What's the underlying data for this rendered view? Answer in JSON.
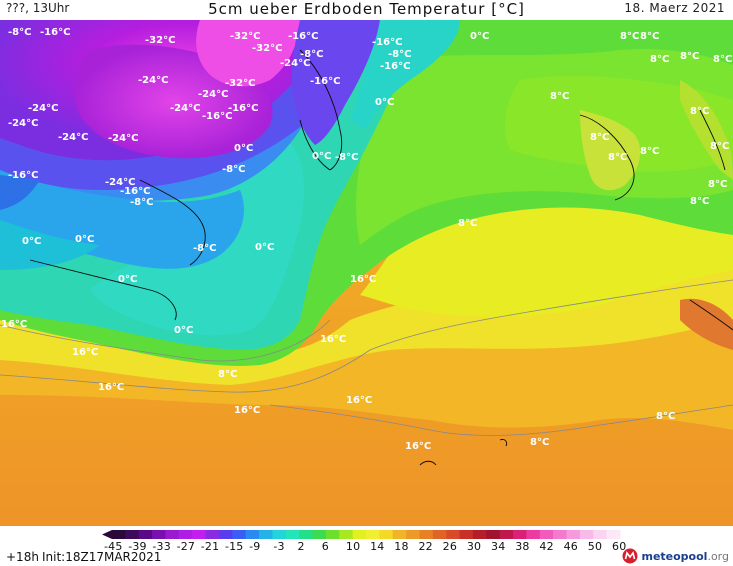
{
  "header": {
    "left": "???, 13Uhr",
    "title": "5cm ueber Erdboden Temperatur [°C]",
    "date": "18. Maerz 2021"
  },
  "map": {
    "contour_labels": [
      {
        "text": "-8°C"
      },
      {
        "text": "-16°C"
      },
      {
        "text": "-32°C"
      },
      {
        "text": "-32°C"
      },
      {
        "text": "-32°C"
      },
      {
        "text": "-16°C"
      },
      {
        "text": "-8°C"
      },
      {
        "text": "-16°C"
      },
      {
        "text": "-24°C"
      },
      {
        "text": "-8°C"
      },
      {
        "text": "-16°C"
      },
      {
        "text": "0°C"
      },
      {
        "text": "-24°C"
      },
      {
        "text": "-32°C"
      },
      {
        "text": "-24°C"
      },
      {
        "text": "-16°C"
      },
      {
        "text": "-24°C"
      },
      {
        "text": "-24°C"
      },
      {
        "text": "-24°C"
      },
      {
        "text": "-16°C"
      },
      {
        "text": "-24°C"
      },
      {
        "text": "-16°C"
      },
      {
        "text": "-24°C"
      },
      {
        "text": "0°C"
      },
      {
        "text": "0°C"
      },
      {
        "text": "-8°C"
      },
      {
        "text": "-16°C"
      },
      {
        "text": "-24°C"
      },
      {
        "text": "-16°C"
      },
      {
        "text": "-8°C"
      },
      {
        "text": "0°C"
      },
      {
        "text": "-8°C"
      },
      {
        "text": "0°C"
      },
      {
        "text": "0°C"
      },
      {
        "text": "-8°C"
      },
      {
        "text": "0°C"
      },
      {
        "text": "8°C"
      },
      {
        "text": "0°C"
      },
      {
        "text": "0°C"
      },
      {
        "text": "8°C"
      },
      {
        "text": "8°C"
      },
      {
        "text": "8°C"
      },
      {
        "text": "8°C"
      },
      {
        "text": "8°C"
      },
      {
        "text": "8°C"
      },
      {
        "text": "8°C"
      },
      {
        "text": "8°C"
      },
      {
        "text": "8°C"
      },
      {
        "text": "8°C"
      },
      {
        "text": "8°C"
      },
      {
        "text": "8°C"
      },
      {
        "text": "8°C"
      },
      {
        "text": "16°C"
      },
      {
        "text": "8°C"
      },
      {
        "text": "16°C"
      },
      {
        "text": "16°C"
      },
      {
        "text": "16°C"
      },
      {
        "text": "16°C"
      },
      {
        "text": "16°C"
      },
      {
        "text": "16°C"
      },
      {
        "text": "16°C"
      },
      {
        "text": "8°C"
      },
      {
        "text": "8°C"
      }
    ]
  },
  "colorbar": {
    "ticks": [
      "-45",
      "-39",
      "-33",
      "-27",
      "-21",
      "-15",
      "-9",
      "-3",
      "2",
      "6",
      "10",
      "14",
      "18",
      "22",
      "26",
      "30",
      "34",
      "38",
      "42",
      "46",
      "50",
      "60"
    ],
    "colors": [
      "#2a0a3a",
      "#3d0a5c",
      "#5a0a86",
      "#7a10b0",
      "#9a1ad2",
      "#b01ee6",
      "#c21ef0",
      "#8a2be2",
      "#5a3cf0",
      "#3a5ef5",
      "#2a8af0",
      "#24b2e8",
      "#22d4dc",
      "#22e6b8",
      "#22e08a",
      "#3cdc50",
      "#6ce02c",
      "#a8e820",
      "#e0f020",
      "#f0f030",
      "#f6d828",
      "#f0b428",
      "#ec9a28",
      "#e88028",
      "#e06428",
      "#d84a28",
      "#c83028",
      "#b41e28",
      "#a0142e",
      "#c0184c",
      "#dc2078",
      "#ec3aa0",
      "#f25abe",
      "#f47ad0",
      "#f69ade",
      "#f8bae8",
      "#fad4f0",
      "#fce8f6"
    ],
    "unit_note": ""
  },
  "footer": {
    "lead": "+18h",
    "init": "Init:18Z17MAR2021",
    "brand": "meteopool",
    "brand_tld": ".org"
  }
}
